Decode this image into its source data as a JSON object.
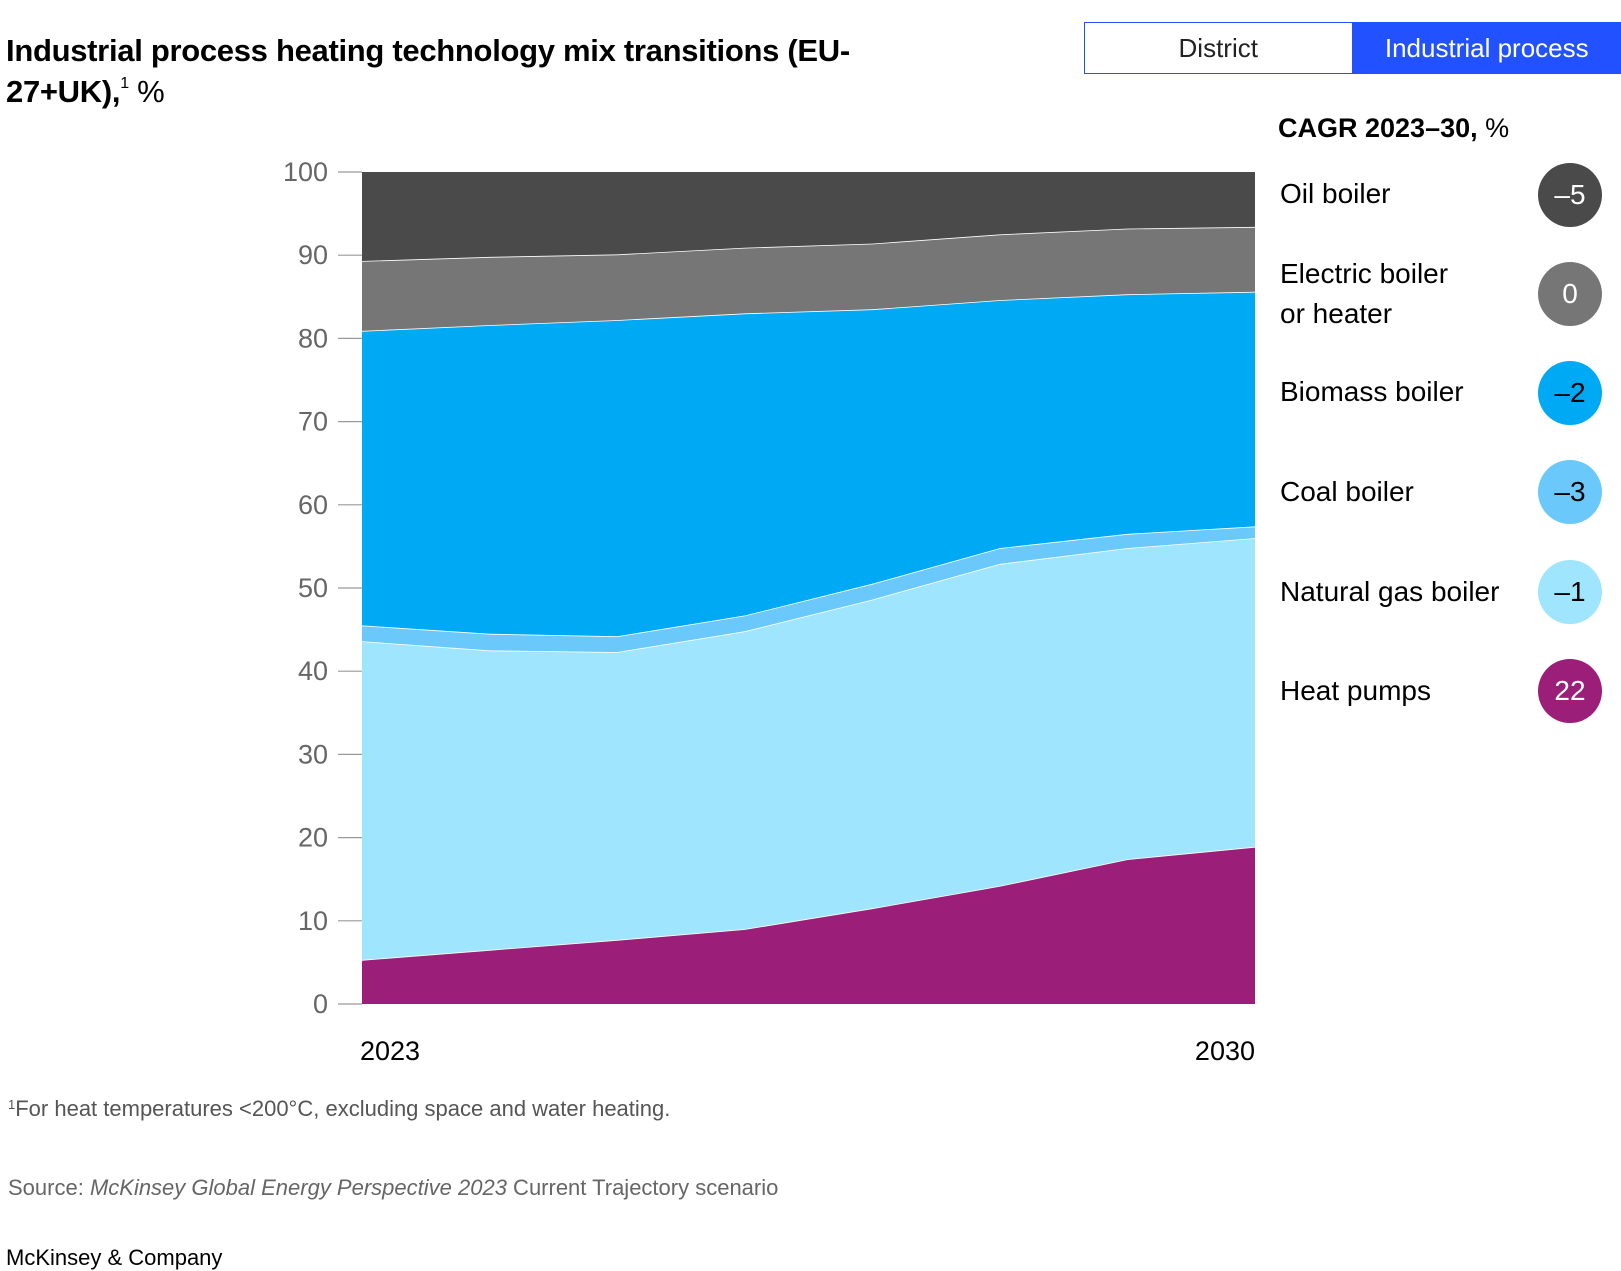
{
  "header": {
    "title": "Industrial process heating technology mix transitions (EU-27+UK),",
    "footnote_ref": "1",
    "unit": "%"
  },
  "toggle": {
    "options": [
      "District",
      "Industrial process"
    ],
    "selected": "Industrial process"
  },
  "legend": {
    "heading": "CAGR 2023–30,",
    "heading_unit": "%",
    "items": [
      {
        "label": "Oil boiler",
        "cagr": "–5",
        "color": "#4a4a4a",
        "text_color": "#ffffff"
      },
      {
        "label": "Electric boiler or heater",
        "cagr": "0",
        "color": "#767676",
        "text_color": "#ffffff"
      },
      {
        "label": "Biomass boiler",
        "cagr": "–2",
        "color": "#00a9f4",
        "text_color": "#000000"
      },
      {
        "label": "Coal boiler",
        "cagr": "–3",
        "color": "#6ac9fa",
        "text_color": "#000000"
      },
      {
        "label": "Natural gas boiler",
        "cagr": "–1",
        "color": "#9ee5fd",
        "text_color": "#000000"
      },
      {
        "label": "Heat pumps",
        "cagr": "22",
        "color": "#9b1f78",
        "text_color": "#ffffff"
      }
    ]
  },
  "chart_data": {
    "type": "area",
    "stacked": true,
    "x": [
      2023,
      2024,
      2025,
      2026,
      2027,
      2028,
      2029,
      2030
    ],
    "x_tick_labels": [
      "2023",
      "2030"
    ],
    "ylim": [
      0,
      100
    ],
    "y_ticks": [
      0,
      10,
      20,
      30,
      40,
      50,
      60,
      70,
      80,
      90,
      100
    ],
    "series": [
      {
        "name": "Heat pumps",
        "color": "#9b1f78",
        "values": [
          5.3,
          6.5,
          7.7,
          9.0,
          11.5,
          14.2,
          17.4,
          18.9
        ]
      },
      {
        "name": "Natural gas boiler",
        "color": "#9ee5fd",
        "values": [
          38.3,
          36.0,
          34.6,
          35.8,
          37.1,
          38.7,
          37.4,
          37.1
        ]
      },
      {
        "name": "Coal boiler",
        "color": "#6ac9fa",
        "values": [
          1.9,
          2.0,
          1.9,
          1.9,
          1.9,
          1.9,
          1.7,
          1.4
        ]
      },
      {
        "name": "Biomass boiler",
        "color": "#00a9f4",
        "values": [
          35.4,
          37.1,
          38.0,
          36.3,
          33.0,
          29.8,
          28.8,
          28.2
        ]
      },
      {
        "name": "Electric boiler or heater",
        "color": "#767676",
        "values": [
          8.4,
          8.2,
          7.9,
          7.9,
          7.9,
          7.9,
          7.9,
          7.8
        ]
      },
      {
        "name": "Oil boiler",
        "color": "#4a4a4a",
        "values": [
          10.7,
          10.2,
          9.9,
          9.1,
          8.6,
          7.5,
          6.8,
          6.6
        ]
      }
    ]
  },
  "footer": {
    "footnote_mark": "1",
    "footnote": "For heat temperatures <200°C, excluding space and water heating.",
    "source_prefix": "Source: ",
    "source_italic": "McKinsey Global Energy Perspective 2023",
    "source_suffix": " Current Trajectory scenario",
    "brand": "McKinsey & Company"
  }
}
